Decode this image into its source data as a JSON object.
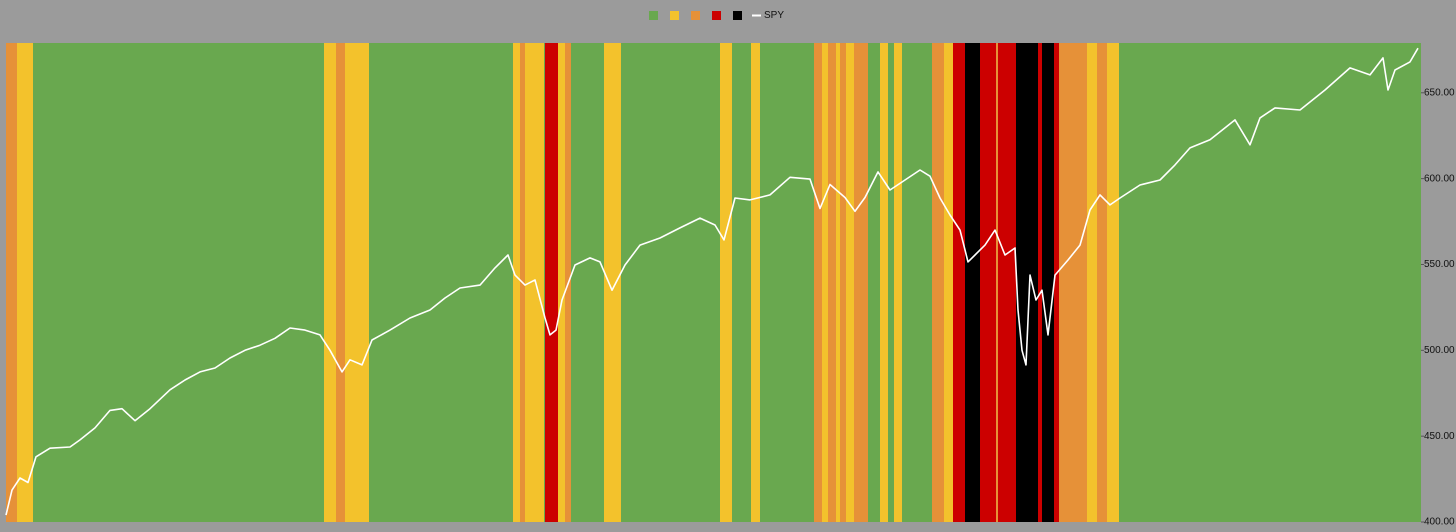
{
  "chart_data": {
    "type": "regime-line",
    "xlim": [
      0,
      1415
    ],
    "y2lim": [
      400,
      679
    ],
    "y2ticks": [
      {
        "value": 400,
        "label": "400.00"
      },
      {
        "value": 450,
        "label": "450.00"
      },
      {
        "value": 500,
        "label": "500.00"
      },
      {
        "value": 550,
        "label": "550.00"
      },
      {
        "value": 600,
        "label": "600.00"
      },
      {
        "value": 650,
        "label": "650.00"
      }
    ],
    "background_color": "#9b9b9b",
    "regimes": [
      {
        "color": "#69a84f",
        "ranges": [
          [
            0,
            1415
          ]
        ]
      },
      {
        "color": "#f3c22c",
        "ranges": [
          [
            11,
            27
          ],
          [
            318,
            330
          ],
          [
            339,
            363
          ],
          [
            507,
            514
          ],
          [
            519,
            538
          ],
          [
            552,
            559
          ],
          [
            598,
            615
          ],
          [
            714,
            726
          ],
          [
            745,
            754
          ],
          [
            816,
            822
          ],
          [
            830,
            834
          ],
          [
            840,
            848
          ],
          [
            874,
            882
          ],
          [
            888,
            896
          ],
          [
            938,
            947
          ],
          [
            1081,
            1091
          ],
          [
            1101,
            1113
          ]
        ]
      },
      {
        "color": "#e69138",
        "ranges": [
          [
            0,
            11
          ],
          [
            330,
            339
          ],
          [
            514,
            519
          ],
          [
            559,
            565
          ],
          [
            808,
            816
          ],
          [
            822,
            830
          ],
          [
            834,
            840
          ],
          [
            848,
            862
          ],
          [
            926,
            938
          ],
          [
            990,
            992
          ],
          [
            1053,
            1081
          ],
          [
            1091,
            1101
          ]
        ]
      },
      {
        "color": "#cc0000",
        "ranges": [
          [
            539,
            552
          ],
          [
            947,
            959
          ],
          [
            974,
            990
          ],
          [
            992,
            1010
          ],
          [
            1032,
            1036
          ],
          [
            1048,
            1053
          ]
        ]
      },
      {
        "color": "#000000",
        "ranges": [
          [
            959,
            974
          ],
          [
            1010,
            1032
          ],
          [
            1036,
            1048
          ]
        ]
      }
    ],
    "series": [
      {
        "name": "SPY",
        "color": "#ffffff",
        "axis": "y2",
        "x": [
          0,
          6,
          14,
          22,
          30,
          44,
          64,
          74,
          89,
          104,
          116,
          129,
          144,
          164,
          179,
          194,
          209,
          224,
          239,
          254,
          269,
          284,
          299,
          314,
          324,
          336,
          344,
          356,
          366,
          384,
          404,
          424,
          439,
          454,
          474,
          489,
          502,
          509,
          519,
          529,
          539,
          544,
          550,
          556,
          569,
          584,
          594,
          606,
          619,
          634,
          654,
          674,
          694,
          709,
          718,
          729,
          744,
          764,
          784,
          804,
          814,
          824,
          839,
          849,
          859,
          872,
          884,
          899,
          914,
          924,
          934,
          944,
          954,
          962,
          969,
          979,
          989,
          999,
          1009,
          1012,
          1016,
          1020,
          1024,
          1030,
          1036,
          1042,
          1049,
          1062,
          1074,
          1084,
          1094,
          1104,
          1114,
          1134,
          1154,
          1169,
          1184,
          1204,
          1229,
          1244,
          1254,
          1269,
          1294,
          1319,
          1344,
          1364,
          1377,
          1382,
          1389,
          1404,
          1412
        ],
        "values": [
          404,
          418.6,
          425.6,
          423,
          438,
          443,
          443.7,
          447.8,
          454.8,
          465,
          466,
          459,
          466,
          477,
          482.7,
          487.4,
          489.7,
          495.5,
          500,
          503,
          507,
          513,
          511.8,
          509,
          500,
          487.4,
          494.5,
          491.5,
          506,
          511.8,
          518.8,
          523.5,
          530.5,
          536.3,
          538,
          548,
          555.5,
          543.8,
          538,
          541,
          518.8,
          509,
          511.8,
          529.3,
          549.7,
          553.8,
          551.5,
          535,
          549.7,
          561.3,
          565.4,
          571.3,
          577,
          573,
          564.3,
          588.7,
          587.6,
          590.5,
          600.8,
          599.7,
          582.6,
          596.6,
          589,
          581,
          589,
          603.9,
          593.4,
          599.2,
          605,
          601.4,
          588.7,
          578.8,
          570,
          551.5,
          555.5,
          561.3,
          570,
          555.5,
          559.6,
          523.5,
          500,
          491.5,
          543.8,
          529.3,
          535,
          509,
          543.8,
          552.6,
          561.3,
          581.7,
          590.5,
          584.7,
          588.7,
          596.3,
          599.2,
          608,
          617.9,
          622.6,
          634.2,
          619.7,
          635.4,
          641.2,
          640,
          651.6,
          664.5,
          660.4,
          670.3,
          651.6,
          663.3,
          668,
          676
        ]
      }
    ]
  }
}
